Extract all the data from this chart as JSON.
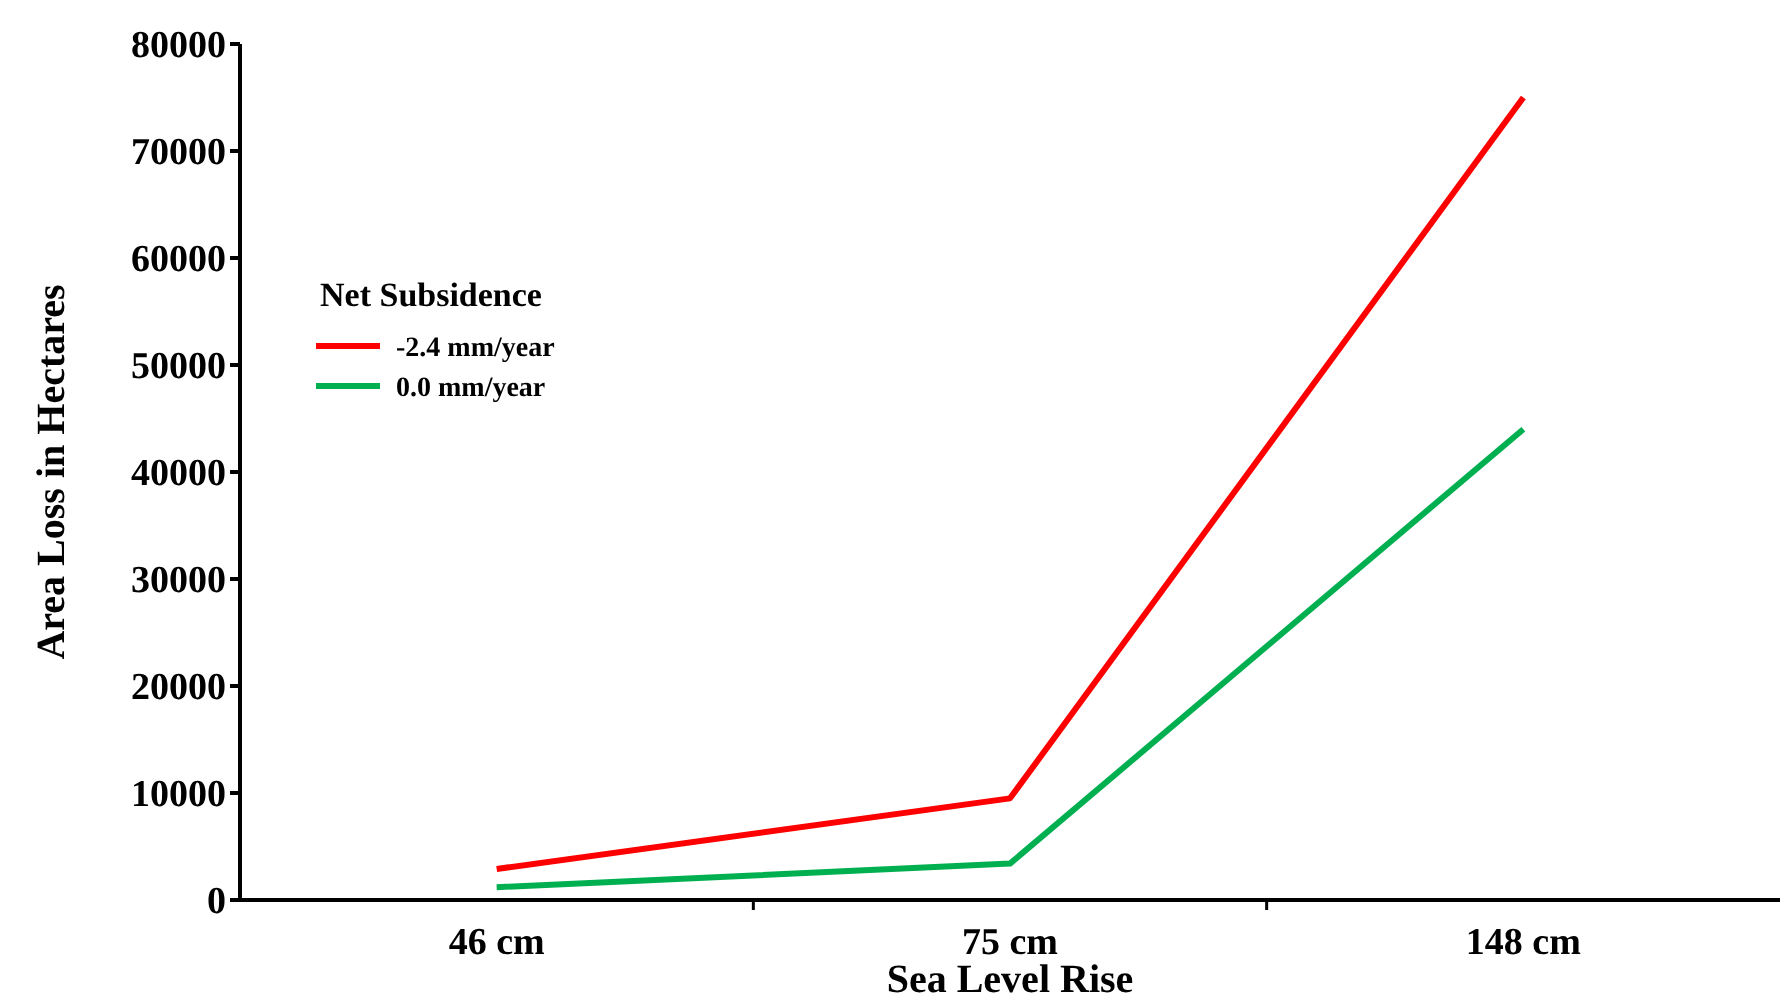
{
  "chart_data": {
    "type": "line",
    "xlabel": "Sea Level Rise",
    "ylabel": "Area Loss in Hectares",
    "legend_title": "Net Subsidence",
    "categories": [
      "46 cm",
      "75 cm",
      "148 cm"
    ],
    "series": [
      {
        "name": "-2.4 mm/year",
        "color": "#ff0000",
        "values": [
          2900,
          9500,
          75000
        ]
      },
      {
        "name": "0.0 mm/year",
        "color": "#00b050",
        "values": [
          1200,
          3400,
          44000
        ]
      }
    ],
    "ylim": [
      0,
      80000
    ],
    "yticks": [
      0,
      10000,
      20000,
      30000,
      40000,
      50000,
      60000,
      70000,
      80000
    ],
    "grid": false,
    "legend": "top left",
    "marker": "none",
    "line_style": "solid"
  }
}
